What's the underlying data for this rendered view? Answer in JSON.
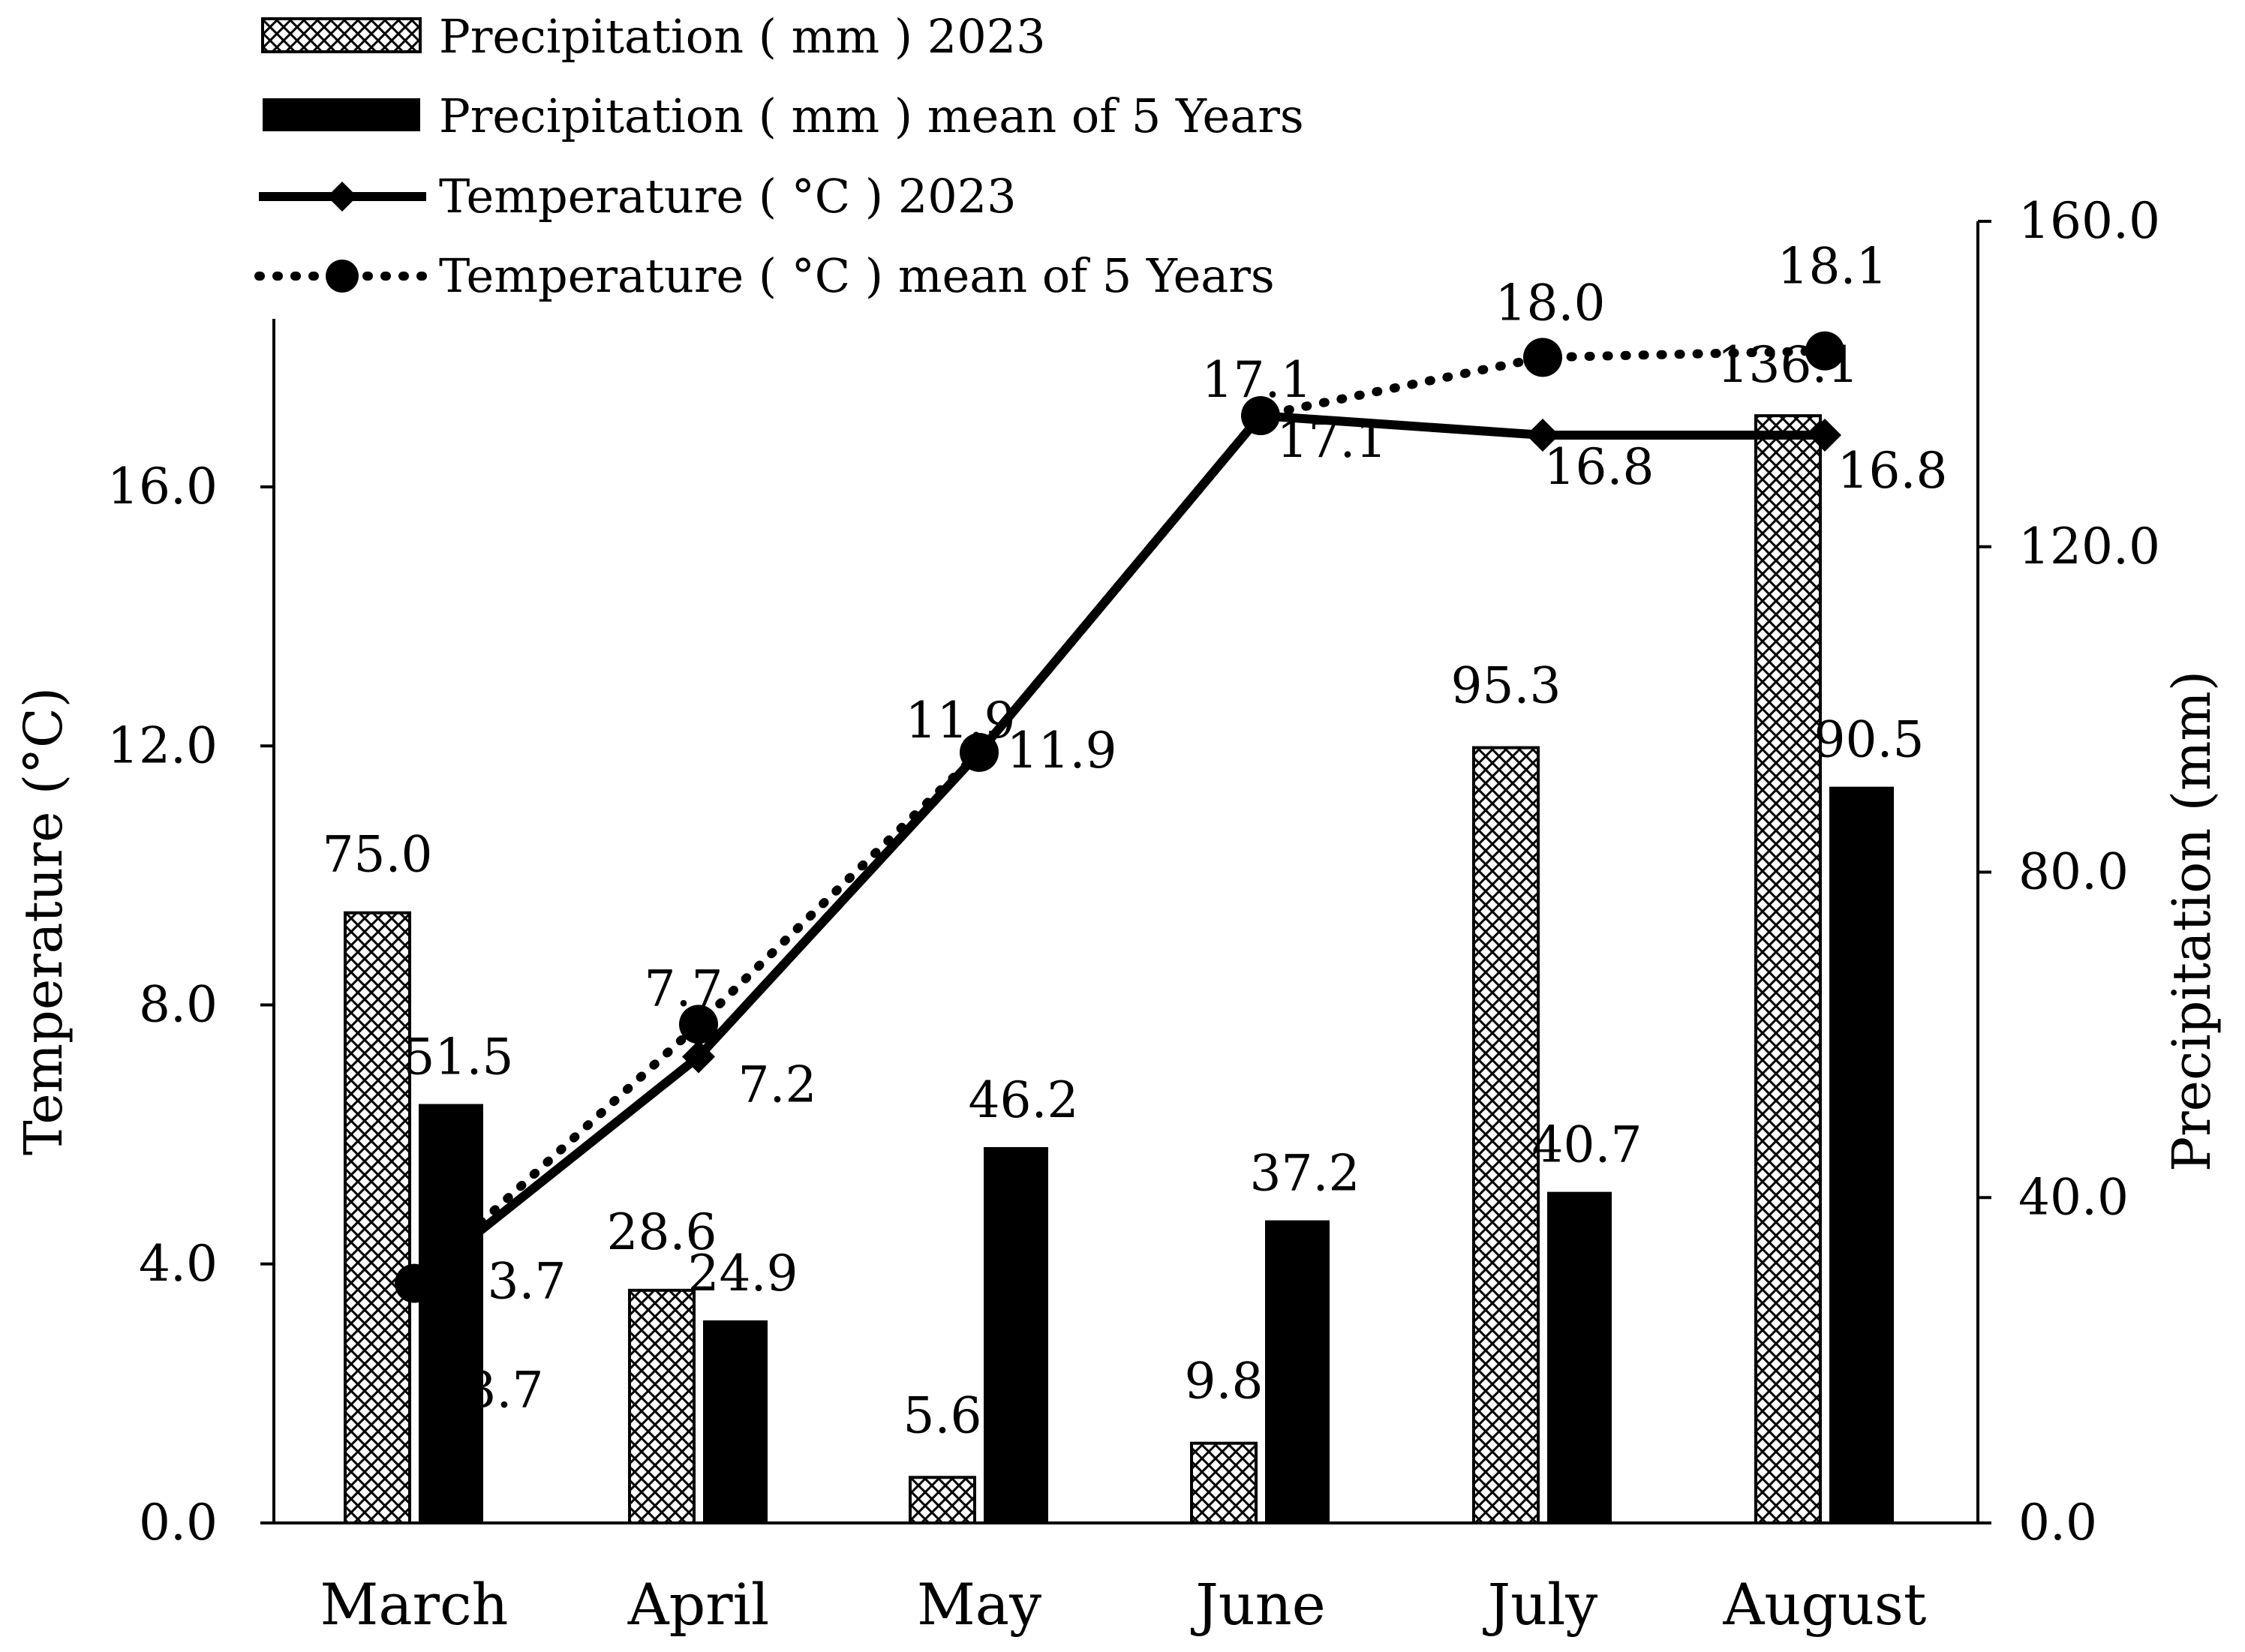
{
  "chart_data": {
    "type": "bar",
    "categories": [
      "March",
      "April",
      "May",
      "June",
      "July",
      "August"
    ],
    "series": [
      {
        "name": "Precipitation ( mm ) 2023",
        "kind": "bar",
        "axis": "right",
        "pattern": "crosshatch",
        "values": [
          75.0,
          28.6,
          5.6,
          9.8,
          95.3,
          136.1
        ],
        "labels": [
          "75.0",
          "28.6",
          "5.6",
          "9.8",
          "95.3",
          "136.1"
        ]
      },
      {
        "name": "Precipitation ( mm ) mean of 5 Years",
        "kind": "bar",
        "axis": "right",
        "pattern": "solid",
        "values": [
          51.5,
          24.9,
          46.2,
          37.2,
          40.7,
          90.5
        ],
        "labels": [
          "51.5",
          "24.9",
          "46.2",
          "37.2",
          "40.7",
          "90.5"
        ]
      },
      {
        "name": "Temperature ( °C ) 2023",
        "kind": "line",
        "axis": "left",
        "marker": "diamond",
        "style": "solid",
        "values": [
          3.7,
          7.2,
          11.9,
          17.1,
          16.8,
          16.8
        ],
        "labels": [
          "3.7",
          "7.2",
          "11.9",
          "17.1",
          "16.8",
          "16.8"
        ]
      },
      {
        "name": "Temperature ( °C ) mean of 5 Years",
        "kind": "line",
        "axis": "left",
        "marker": "circle",
        "style": "dotted",
        "values": [
          3.7,
          7.7,
          11.9,
          17.1,
          18.0,
          18.1
        ],
        "labels": [
          "3.7",
          "7.7",
          "11.9",
          "17.1",
          "18.0",
          "18.1"
        ]
      }
    ],
    "ylabel": "Temperature (°C)",
    "y2label": "Precipitation (mm)",
    "ylim": [
      0,
      18.6
    ],
    "y2lim": [
      0,
      160
    ],
    "yticks": [
      "0.0",
      "4.0",
      "8.0",
      "12.0",
      "16.0"
    ],
    "y2ticks": [
      "0.0",
      "40.0",
      "80.0",
      "120.0",
      "160.0"
    ],
    "ytick_values": [
      0,
      4,
      8,
      12,
      16
    ],
    "y2tick_values": [
      0,
      40,
      80,
      120,
      160
    ],
    "legend_position": "top-left",
    "grid": false
  },
  "colors": {
    "ink": "#000000",
    "background": "#ffffff"
  }
}
